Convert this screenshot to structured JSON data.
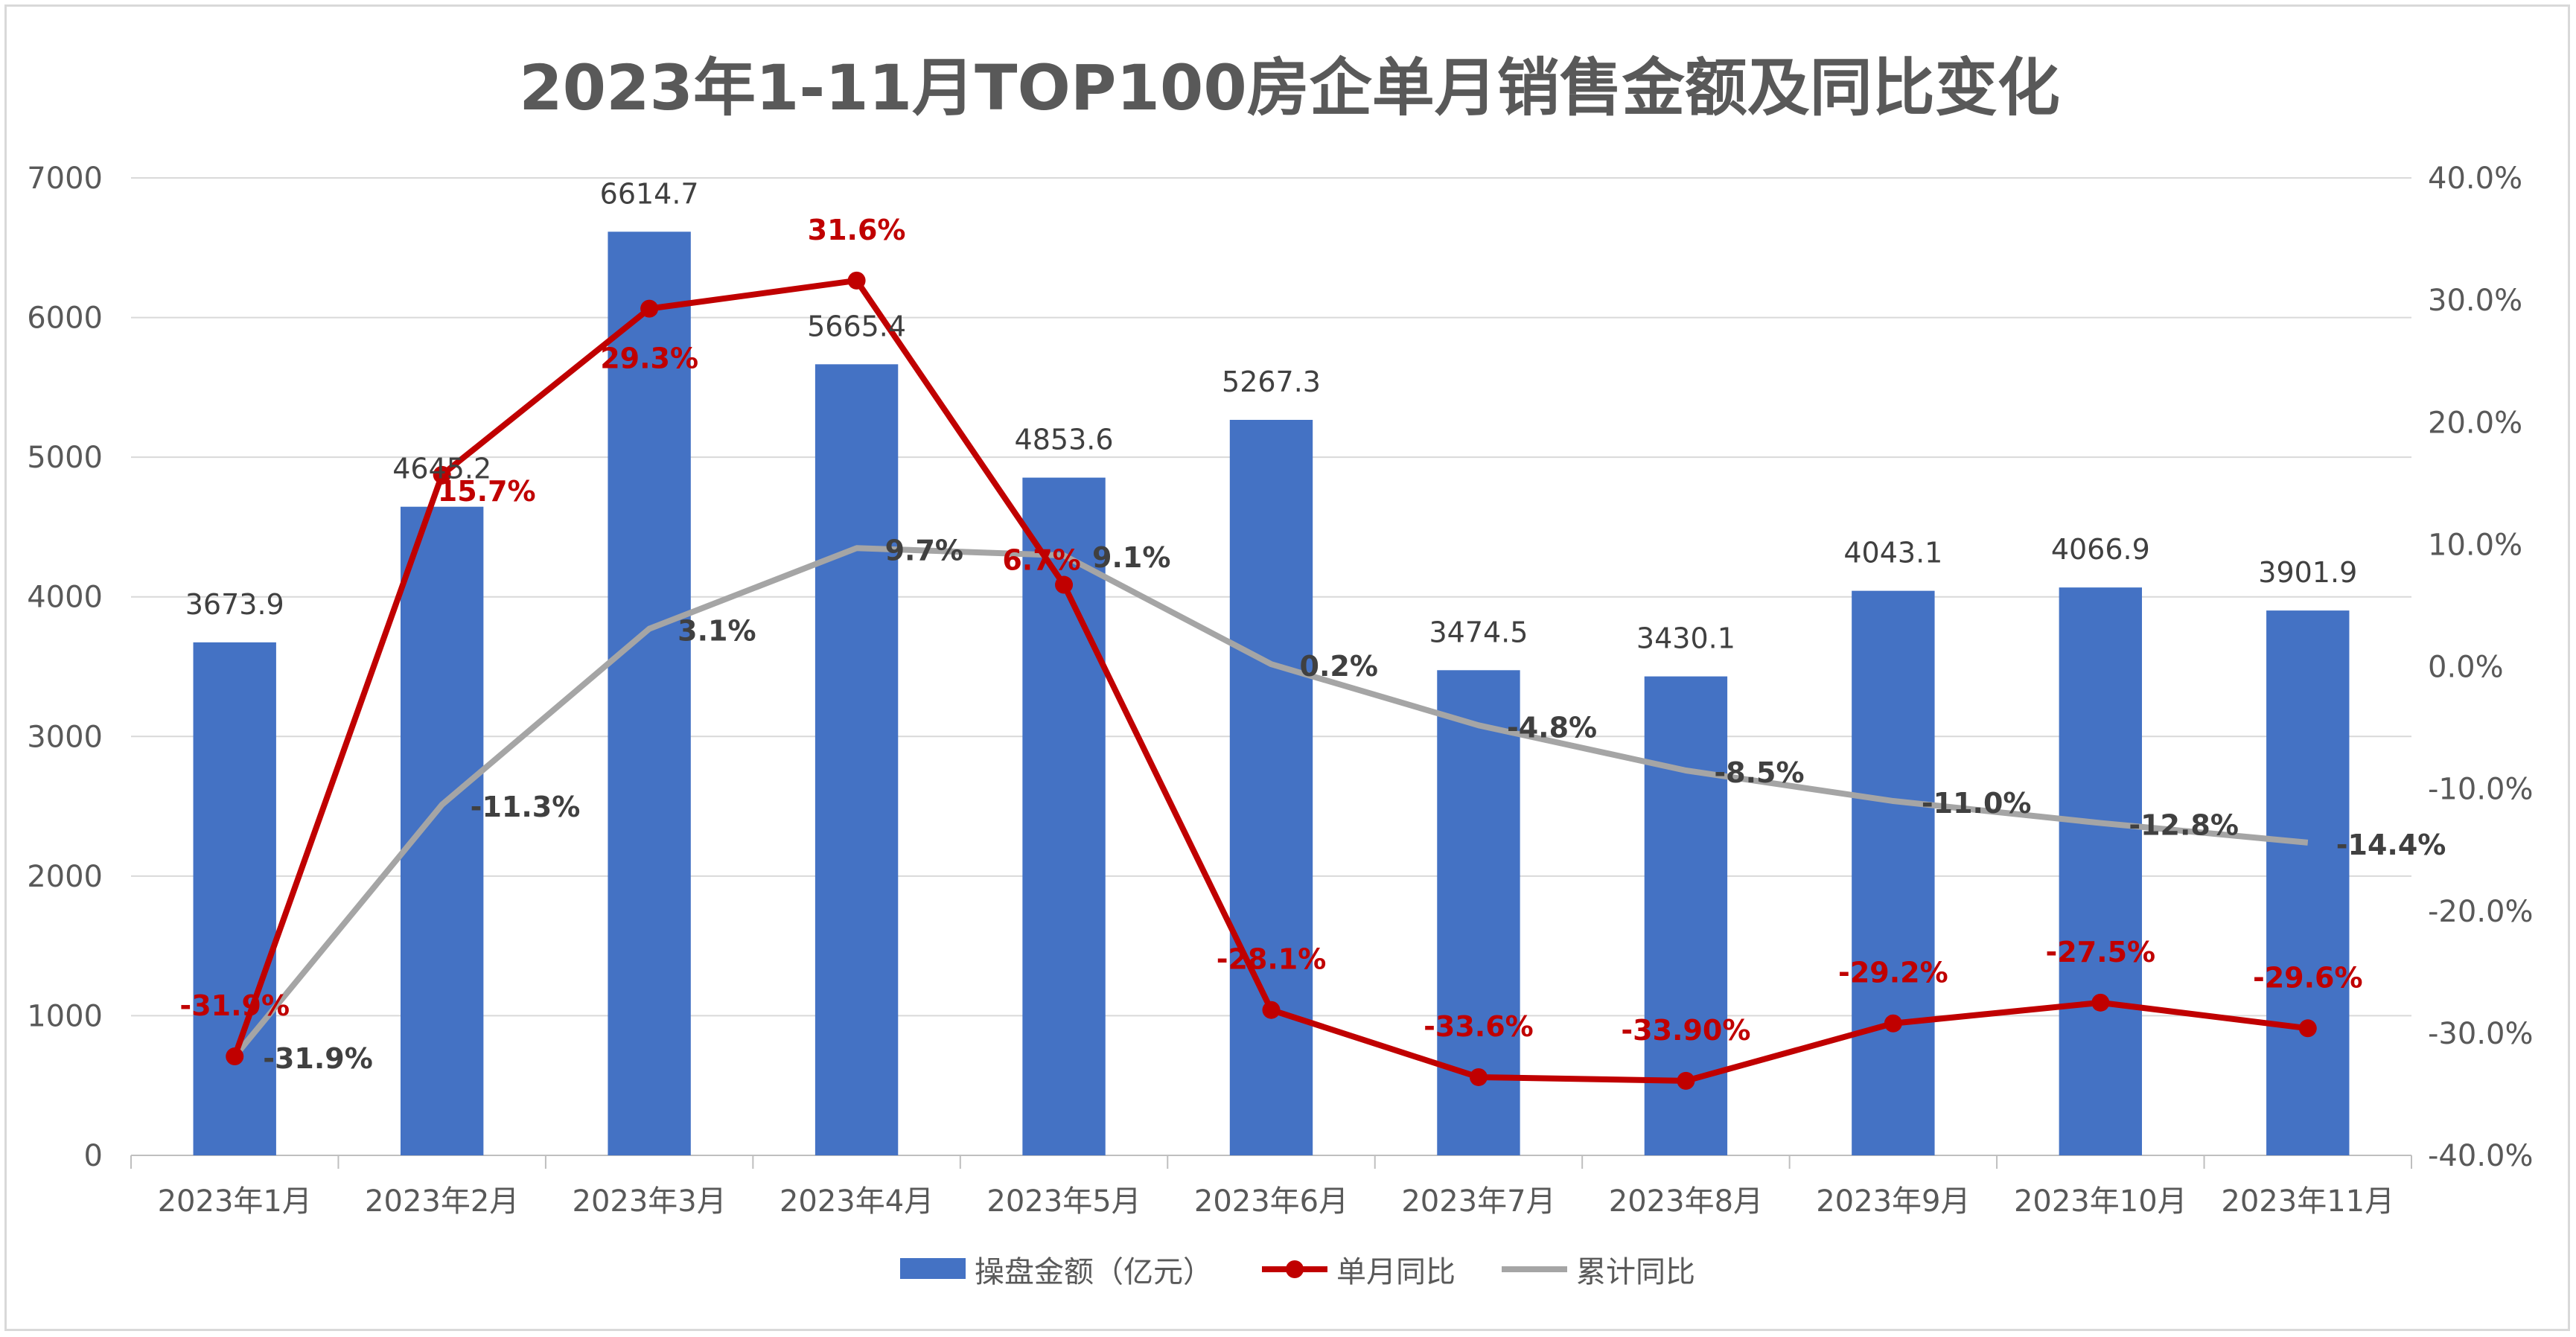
{
  "chart_data": {
    "type": "bar",
    "title": "2023年1-11月TOP100房企单月销售金额及同比变化",
    "categories": [
      "2023年1月",
      "2023年2月",
      "2023年3月",
      "2023年4月",
      "2023年5月",
      "2023年6月",
      "2023年7月",
      "2023年8月",
      "2023年9月",
      "2023年10月",
      "2023年11月"
    ],
    "series": [
      {
        "name": "操盘金额（亿元）",
        "type": "bar",
        "axis": "left",
        "color": "#4472c4",
        "values": [
          3673.9,
          4645.2,
          6614.7,
          5665.4,
          4853.6,
          5267.3,
          3474.5,
          3430.1,
          4043.1,
          4066.9,
          3901.9
        ],
        "labels": [
          "3673.9",
          "4645.2",
          "6614.7",
          "5665.4",
          "4853.6",
          "5267.3",
          "3474.5",
          "3430.1",
          "4043.1",
          "4066.9",
          "3901.9"
        ]
      },
      {
        "name": "单月同比",
        "type": "line",
        "axis": "right",
        "color": "#c00000",
        "values": [
          -31.9,
          15.7,
          29.3,
          31.6,
          6.7,
          -28.1,
          -33.6,
          -33.9,
          -29.2,
          -27.5,
          -29.6
        ],
        "labels": [
          "-31.9%",
          "15.7%",
          "29.3%",
          "31.6%",
          "6.7%",
          "-28.1%",
          "-33.6%",
          "-33.90%",
          "-29.2%",
          "-27.5%",
          "-29.6%"
        ]
      },
      {
        "name": "累计同比",
        "type": "line",
        "axis": "right",
        "color": "#a5a5a5",
        "values": [
          -31.9,
          -11.3,
          3.1,
          9.7,
          9.1,
          0.2,
          -4.8,
          -8.5,
          -11.0,
          -12.8,
          -14.4
        ],
        "labels": [
          "-31.9%",
          "-11.3%",
          "3.1%",
          "9.7%",
          "9.1%",
          "0.2%",
          "-4.8%",
          "-8.5%",
          "-11.0%",
          "-12.8%",
          "-14.4%"
        ]
      }
    ],
    "y_left": {
      "min": 0,
      "max": 7000,
      "ticks": [
        "0",
        "1000",
        "2000",
        "3000",
        "4000",
        "5000",
        "6000",
        "7000"
      ]
    },
    "y_right": {
      "min": -40,
      "max": 40,
      "ticks": [
        "-40.0%",
        "-30.0%",
        "-20.0%",
        "-10.0%",
        "0.0%",
        "10.0%",
        "20.0%",
        "30.0%",
        "40.0%"
      ]
    },
    "grid": true,
    "legend_position": "bottom"
  }
}
